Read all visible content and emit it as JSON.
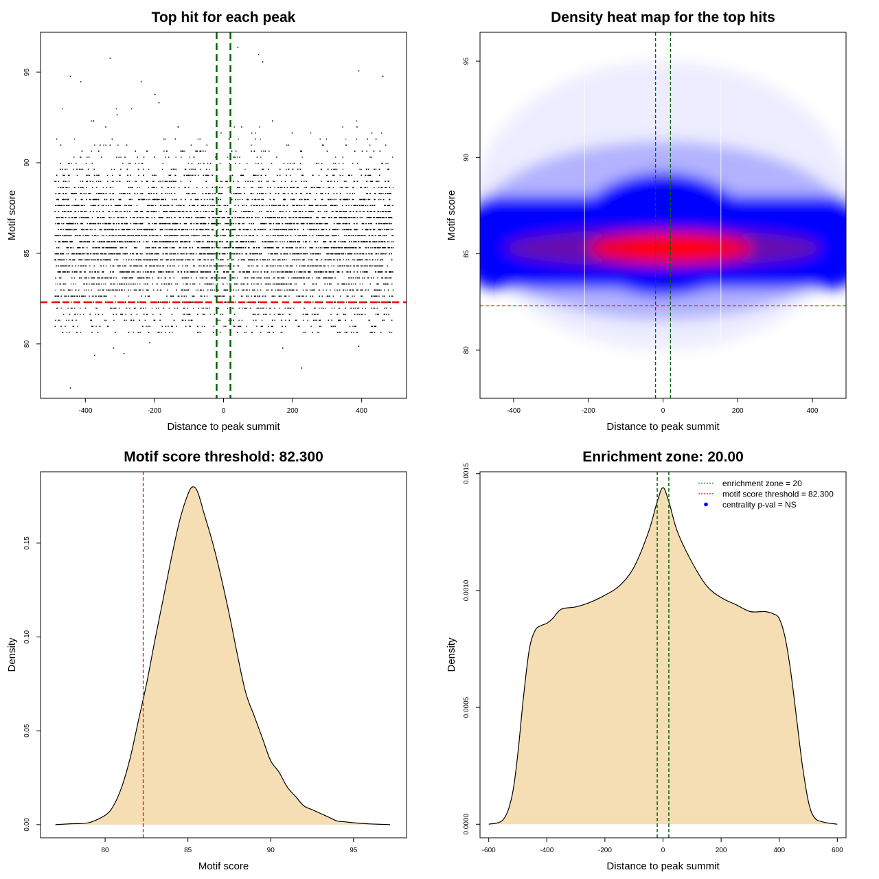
{
  "chart_data": [
    {
      "type": "scatter",
      "title": "Top hit for each peak",
      "xlabel": "Distance to peak summit",
      "ylabel": "Motif score",
      "xlim": [
        -530,
        530
      ],
      "ylim": [
        77,
        97.2
      ],
      "xticks": [
        -400,
        -200,
        0,
        200,
        400
      ],
      "yticks": [
        80,
        85,
        90,
        95
      ],
      "point_count_approx": 10000,
      "point_x_range": [
        -490,
        490
      ],
      "point_score_mean": 85.6,
      "point_score_sd": 2.3,
      "vlines": [
        -20,
        20
      ],
      "hline": 82.3,
      "vline_color": "#006400",
      "hline_color": "#ff0000",
      "point_color": "#000000",
      "outlier_points": [
        {
          "x": -445,
          "y": 77.6
        },
        {
          "x": -375,
          "y": 79.4
        },
        {
          "x": -290,
          "y": 79.5
        },
        {
          "x": -215,
          "y": 80.1
        },
        {
          "x": -320,
          "y": 79.8
        },
        {
          "x": 225,
          "y": 78.7
        },
        {
          "x": 170,
          "y": 79.8
        },
        {
          "x": 390,
          "y": 79.9
        },
        {
          "x": -330,
          "y": 95.8
        },
        {
          "x": -445,
          "y": 94.8
        },
        {
          "x": 100,
          "y": 96.0
        },
        {
          "x": 390,
          "y": 95.1
        },
        {
          "x": 460,
          "y": 94.8
        },
        {
          "x": -240,
          "y": 94.5
        },
        {
          "x": 40,
          "y": 96.4
        },
        {
          "x": 112,
          "y": 95.6
        },
        {
          "x": -200,
          "y": 93.8
        },
        {
          "x": -415,
          "y": 94.5
        }
      ]
    },
    {
      "type": "heatmap",
      "title": "Density heat map for the top hits",
      "xlabel": "Distance to peak summit",
      "ylabel": "Motif score",
      "xlim": [
        -490,
        490
      ],
      "ylim": [
        77.5,
        96.5
      ],
      "xticks": [
        -400,
        -200,
        0,
        200,
        400
      ],
      "yticks": [
        80,
        85,
        90,
        95
      ],
      "vlines": [
        -20,
        20
      ],
      "hline": 82.3,
      "color_low": "#ffffff",
      "color_mid": "#0000ff",
      "color_high": "#ff0000",
      "density_center": {
        "x": 20,
        "y": 85.3
      },
      "density_band_score": 85.6
    },
    {
      "type": "area",
      "title": "Motif score threshold: 82.300",
      "xlabel": "Motif score",
      "ylabel": "Density",
      "xlim": [
        76.1,
        98.2
      ],
      "ylim": [
        -0.007,
        0.188
      ],
      "xticks": [
        80,
        85,
        90,
        95
      ],
      "yticks": [
        0.0,
        0.05,
        0.1,
        0.15
      ],
      "ytick_labels": [
        "0.00",
        "0.05",
        "0.10",
        "0.15"
      ],
      "vline": 82.3,
      "vline_color": "#ff0000",
      "fill_color": "#f5deb3",
      "x": [
        77,
        78,
        79,
        80,
        80.5,
        81,
        81.5,
        82,
        82.5,
        83,
        83.5,
        84,
        84.5,
        85,
        85.3,
        85.6,
        86,
        86.5,
        87,
        87.5,
        88,
        88.5,
        89,
        89.5,
        90,
        90.5,
        91,
        91.5,
        92,
        92.5,
        93,
        93.5,
        94,
        94.5,
        95,
        96,
        97.2
      ],
      "y": [
        0.0,
        0.0005,
        0.001,
        0.005,
        0.01,
        0.02,
        0.035,
        0.055,
        0.075,
        0.098,
        0.12,
        0.142,
        0.162,
        0.176,
        0.18,
        0.177,
        0.165,
        0.15,
        0.132,
        0.112,
        0.09,
        0.07,
        0.058,
        0.046,
        0.034,
        0.028,
        0.02,
        0.015,
        0.01,
        0.008,
        0.006,
        0.004,
        0.002,
        0.0015,
        0.001,
        0.0004,
        0.0
      ]
    },
    {
      "type": "area",
      "title": "Enrichment zone: 20.00",
      "xlabel": "Distance to peak summit",
      "ylabel": "Density",
      "xlim": [
        -630,
        630
      ],
      "ylim": [
        -5.8e-05,
        0.001508
      ],
      "xticks": [
        -600,
        -400,
        -200,
        0,
        200,
        400,
        600
      ],
      "yticks": [
        0.0,
        0.0005,
        0.001,
        0.0015
      ],
      "ytick_labels": [
        "0.0000",
        "0.0005",
        "0.0010",
        "0.0015"
      ],
      "vlines": [
        -20,
        20
      ],
      "vline_color": "#006400",
      "fill_color": "#f5deb3",
      "x": [
        -600,
        -550,
        -520,
        -500,
        -480,
        -460,
        -440,
        -420,
        -400,
        -380,
        -350,
        -300,
        -250,
        -200,
        -150,
        -100,
        -50,
        -20,
        0,
        20,
        50,
        100,
        150,
        200,
        250,
        300,
        350,
        380,
        400,
        420,
        440,
        460,
        480,
        500,
        520,
        550,
        600
      ],
      "y": [
        0.0,
        2e-05,
        0.00012,
        0.0003,
        0.00055,
        0.00075,
        0.00083,
        0.00085,
        0.00086,
        0.00088,
        0.00092,
        0.00093,
        0.00095,
        0.00098,
        0.00102,
        0.0011,
        0.00125,
        0.00138,
        0.00144,
        0.00138,
        0.00125,
        0.00112,
        0.00102,
        0.00097,
        0.00094,
        0.00091,
        0.00091,
        0.0009,
        0.00088,
        0.0008,
        0.00065,
        0.00045,
        0.00025,
        0.0001,
        3e-05,
        1e-05,
        0.0
      ],
      "legend": {
        "position": "top-right",
        "items": [
          {
            "label": "enrichment zone = 20",
            "symbol": "dotted-line",
            "color": "#006400"
          },
          {
            "label": "motif score threshold = 82.300",
            "symbol": "dotted-line",
            "color": "#ff0000"
          },
          {
            "label": "centrality p-val = NS",
            "symbol": "dot",
            "color": "#0000ff"
          }
        ]
      }
    }
  ]
}
